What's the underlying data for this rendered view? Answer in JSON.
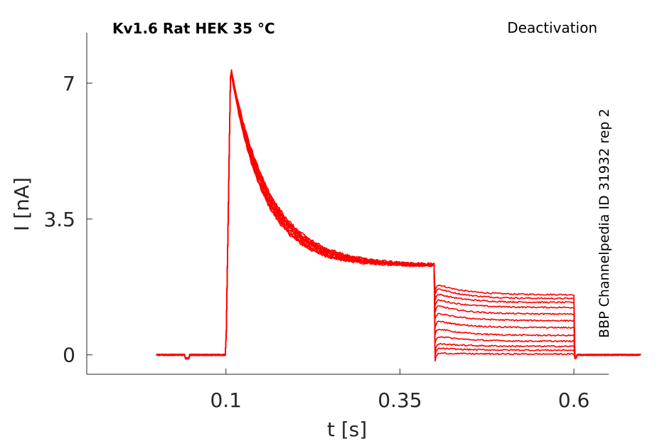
{
  "chart_data": {
    "type": "line",
    "title": "Kv1.6  Rat  HEK  35 °C",
    "protocol": "Deactivation",
    "side_label": "BBP Channelpedia ID 31932 rep 2",
    "xlabel": "t [s]",
    "ylabel": "I [nA]",
    "xlim": [
      -0.1,
      0.65
    ],
    "ylim": [
      -0.5,
      8.3
    ],
    "xticks": [
      0.1,
      0.35,
      0.6
    ],
    "xtick_labels": [
      "0.1",
      "0.35",
      "0.6"
    ],
    "yticks": [
      0,
      3.5,
      7
    ],
    "ytick_labels": [
      "0",
      "3.5",
      "7"
    ],
    "grid": false,
    "line_color": "#ff0000",
    "activation_step": {
      "t_on": 0.1,
      "t_off": 0.4,
      "peak_t": 0.107,
      "peak_nA": 7.35,
      "end_nA": 2.3
    },
    "tail_step": {
      "t_off": 0.6,
      "end_t": 0.597
    },
    "series": [
      {
        "tail_start_nA": 1.85,
        "tail_end_nA": 1.55
      },
      {
        "tail_start_nA": 1.75,
        "tail_end_nA": 1.45
      },
      {
        "tail_start_nA": 1.6,
        "tail_end_nA": 1.35
      },
      {
        "tail_start_nA": 1.45,
        "tail_end_nA": 1.22
      },
      {
        "tail_start_nA": 1.3,
        "tail_end_nA": 1.05
      },
      {
        "tail_start_nA": 1.1,
        "tail_end_nA": 0.88
      },
      {
        "tail_start_nA": 0.9,
        "tail_end_nA": 0.7
      },
      {
        "tail_start_nA": 0.7,
        "tail_end_nA": 0.5
      },
      {
        "tail_start_nA": 0.5,
        "tail_end_nA": 0.35
      },
      {
        "tail_start_nA": 0.3,
        "tail_end_nA": 0.22
      },
      {
        "tail_start_nA": 0.18,
        "tail_end_nA": 0.12
      },
      {
        "tail_start_nA": 0.05,
        "tail_end_nA": 0.02
      }
    ]
  }
}
